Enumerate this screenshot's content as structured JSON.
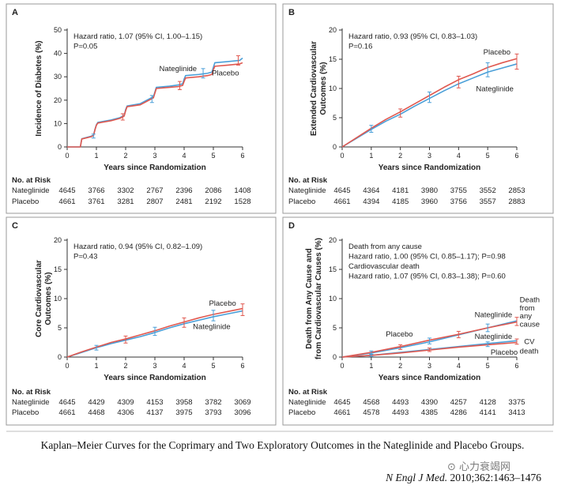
{
  "caption": "Kaplan–Meier Curves for the Coprimary and Two Exploratory Outcomes in the Nateglinide and Placebo Groups.",
  "citation": {
    "journal": "N Engl J Med.",
    "ref": " 2010;362:1463–1476"
  },
  "watermark": "⊙ 心力衰竭网",
  "colors": {
    "nateglinide": "#4a9fd8",
    "placebo": "#e0584f",
    "axis": "#333333",
    "border": "#9a9a9a"
  },
  "chart_data": [
    {
      "panel": "A",
      "type": "line",
      "ylabel": "Incidence of Diabetes (%)",
      "xlabel": "Years since Randomization",
      "ylim": [
        0,
        50
      ],
      "yticks": [
        0,
        10,
        20,
        30,
        40,
        50
      ],
      "xlim": [
        0,
        6
      ],
      "xticks": [
        0,
        1,
        2,
        3,
        4,
        5,
        6
      ],
      "stats": [
        "Hazard ratio, 1.07 (95% CI, 1.00–1.15)",
        "P=0.05"
      ],
      "labels": [
        {
          "text": "Nateglinide",
          "x": 3.15,
          "y": 32.5
        },
        {
          "text": "Placebo",
          "x": 4.95,
          "y": 30.5
        }
      ],
      "series": [
        {
          "name": "Nateglinide",
          "x": [
            0,
            0.45,
            0.5,
            0.8,
            0.9,
            0.95,
            1.0,
            1.05,
            1.5,
            1.8,
            1.95,
            2.0,
            2.05,
            2.5,
            2.8,
            2.95,
            3.0,
            3.05,
            3.5,
            3.8,
            3.95,
            4.0,
            4.05,
            4.5,
            4.8,
            4.95,
            5.0,
            5.05,
            5.5,
            5.9,
            6.0
          ],
          "y": [
            0,
            0,
            3.5,
            4.5,
            5.0,
            7.5,
            9.5,
            10.5,
            11.5,
            12.5,
            13.5,
            16,
            17.5,
            18.5,
            20.5,
            21.5,
            23.5,
            25.5,
            26,
            26.5,
            27,
            29,
            30.5,
            31,
            31.5,
            32,
            34,
            36,
            36.5,
            37,
            38
          ]
        },
        {
          "name": "Placebo",
          "x": [
            0,
            0.45,
            0.5,
            0.8,
            0.9,
            0.95,
            1.0,
            1.05,
            1.5,
            1.8,
            1.95,
            2.0,
            2.05,
            2.5,
            2.8,
            2.95,
            3.0,
            3.05,
            3.5,
            3.8,
            3.95,
            4.0,
            4.05,
            4.5,
            4.8,
            4.95,
            5.0,
            5.05,
            5.5,
            5.9,
            6.0
          ],
          "y": [
            0,
            0,
            3.4,
            4.3,
            4.8,
            7.3,
            9.3,
            10.2,
            11.2,
            12.2,
            13.2,
            15.5,
            17.2,
            18,
            20,
            21,
            23,
            25,
            25.5,
            25.8,
            26.3,
            28,
            29.5,
            30,
            30.5,
            31,
            33,
            34.5,
            35,
            35.5,
            36
          ]
        }
      ],
      "errorbars": [
        {
          "x": 0.9,
          "y": 4.6,
          "lo": 3.8,
          "hi": 5.5
        },
        {
          "x": 1.9,
          "y": 12.8,
          "lo": 11.5,
          "hi": 14.2
        },
        {
          "x": 2.9,
          "y": 20.5,
          "lo": 19,
          "hi": 22
        },
        {
          "x": 3.85,
          "y": 26.3,
          "lo": 24.5,
          "hi": 28
        },
        {
          "x": 4.65,
          "y": 31.5,
          "lo": 29.5,
          "hi": 33.5
        },
        {
          "x": 5.85,
          "y": 37,
          "lo": 35,
          "hi": 39
        }
      ],
      "risk": {
        "title": "No. at Risk",
        "rows": [
          {
            "label": "Nateglinide",
            "values": [
              "4645",
              "3766",
              "3302",
              "2767",
              "2396",
              "2086",
              "1408"
            ]
          },
          {
            "label": "Placebo",
            "values": [
              "4661",
              "3761",
              "3281",
              "2807",
              "2481",
              "2192",
              "1528"
            ]
          }
        ]
      }
    },
    {
      "panel": "B",
      "type": "line",
      "ylabel": "Extended Cardiovascular Outcomes (%)",
      "xlabel": "Years since Randomization",
      "ylim": [
        0,
        20
      ],
      "yticks": [
        0,
        5,
        10,
        15,
        20
      ],
      "xlim": [
        0,
        6
      ],
      "xticks": [
        0,
        1,
        2,
        3,
        4,
        5,
        6
      ],
      "stats": [
        "Hazard ratio, 0.93 (95% CI, 0.83–1.03)",
        "P=0.16"
      ],
      "labels": [
        {
          "text": "Placebo",
          "x": 4.85,
          "y": 15.8
        },
        {
          "text": "Nateglinide",
          "x": 4.6,
          "y": 9.5
        }
      ],
      "series": [
        {
          "name": "Nateglinide",
          "x": [
            0,
            0.5,
            1,
            1.5,
            2,
            2.5,
            3,
            3.5,
            4,
            4.5,
            5,
            5.5,
            6
          ],
          "y": [
            0,
            1.5,
            3.0,
            4.4,
            5.6,
            7.0,
            8.3,
            9.6,
            10.8,
            11.8,
            12.8,
            13.5,
            14.2
          ]
        },
        {
          "name": "Placebo",
          "x": [
            0,
            0.5,
            1,
            1.5,
            2,
            2.5,
            3,
            3.5,
            4,
            4.5,
            5,
            5.5,
            6
          ],
          "y": [
            0,
            1.6,
            3.2,
            4.7,
            6.0,
            7.4,
            8.8,
            10.2,
            11.5,
            12.5,
            13.6,
            14.4,
            15.1
          ]
        }
      ],
      "errorbars": [
        {
          "x": 1,
          "y": 3.1,
          "lo": 2.5,
          "hi": 3.7
        },
        {
          "x": 2,
          "y": 5.8,
          "lo": 5.1,
          "hi": 6.5
        },
        {
          "x": 3,
          "y": 8.5,
          "lo": 7.6,
          "hi": 9.4
        },
        {
          "x": 4,
          "y": 11.1,
          "lo": 10.1,
          "hi": 12.1
        },
        {
          "x": 5,
          "y": 13.2,
          "lo": 12,
          "hi": 14.4
        },
        {
          "x": 6,
          "y": 14.6,
          "lo": 13.3,
          "hi": 15.9
        }
      ],
      "risk": {
        "title": "No. at Risk",
        "rows": [
          {
            "label": "Nateglinide",
            "values": [
              "4645",
              "4364",
              "4181",
              "3980",
              "3755",
              "3552",
              "2853"
            ]
          },
          {
            "label": "Placebo",
            "values": [
              "4661",
              "4394",
              "4185",
              "3960",
              "3756",
              "3557",
              "2883"
            ]
          }
        ]
      }
    },
    {
      "panel": "C",
      "type": "line",
      "ylabel": "Core Cardiovascular Outcomes (%)",
      "xlabel": "Years since Randomization",
      "ylim": [
        0,
        20
      ],
      "yticks": [
        0,
        5,
        10,
        15,
        20
      ],
      "xlim": [
        0,
        6
      ],
      "xticks": [
        0,
        1,
        2,
        3,
        4,
        5,
        6
      ],
      "stats": [
        "Hazard ratio, 0.94 (95% CI, 0.82–1.09)",
        "P=0.43"
      ],
      "labels": [
        {
          "text": "Placebo",
          "x": 4.85,
          "y": 8.8
        },
        {
          "text": "Nateglinide",
          "x": 4.3,
          "y": 4.8
        }
      ],
      "series": [
        {
          "name": "Nateglinide",
          "x": [
            0,
            0.5,
            1,
            1.5,
            2,
            2.5,
            3,
            3.5,
            4,
            4.5,
            5,
            5.5,
            6
          ],
          "y": [
            0,
            0.8,
            1.6,
            2.3,
            2.9,
            3.5,
            4.2,
            5.0,
            5.7,
            6.3,
            6.9,
            7.4,
            7.9
          ]
        },
        {
          "name": "Placebo",
          "x": [
            0,
            0.5,
            1,
            1.5,
            2,
            2.5,
            3,
            3.5,
            4,
            4.5,
            5,
            5.5,
            6
          ],
          "y": [
            0,
            0.9,
            1.7,
            2.5,
            3.1,
            3.8,
            4.5,
            5.3,
            6.0,
            6.7,
            7.3,
            7.8,
            8.3
          ]
        }
      ],
      "errorbars": [
        {
          "x": 1,
          "y": 1.6,
          "lo": 1.2,
          "hi": 2.0
        },
        {
          "x": 2,
          "y": 3.0,
          "lo": 2.4,
          "hi": 3.6
        },
        {
          "x": 3,
          "y": 4.4,
          "lo": 3.7,
          "hi": 5.1
        },
        {
          "x": 4,
          "y": 5.9,
          "lo": 5.1,
          "hi": 6.7
        },
        {
          "x": 5,
          "y": 7.1,
          "lo": 6.2,
          "hi": 8.0
        },
        {
          "x": 6,
          "y": 8.1,
          "lo": 7.1,
          "hi": 9.1
        }
      ],
      "risk": {
        "title": "No. at Risk",
        "rows": [
          {
            "label": "Nateglinide",
            "values": [
              "4645",
              "4429",
              "4309",
              "4153",
              "3958",
              "3782",
              "3069"
            ]
          },
          {
            "label": "Placebo",
            "values": [
              "4661",
              "4468",
              "4306",
              "4137",
              "3975",
              "3793",
              "3096"
            ]
          }
        ]
      }
    },
    {
      "panel": "D",
      "type": "line",
      "ylabel": "Death from Any Cause and from Cardiovascular Causes (%)",
      "xlabel": "Years since Randomization",
      "ylim": [
        0,
        20
      ],
      "yticks": [
        0,
        5,
        10,
        15,
        20
      ],
      "xlim": [
        0,
        6
      ],
      "xticks": [
        0,
        1,
        2,
        3,
        4,
        5,
        6
      ],
      "stats": [
        "Death from any cause",
        "   Hazard ratio, 1.00 (95% CI, 0.85–1.17); P=0.98",
        "Cardiovascular death",
        "   Hazard ratio, 1.07 (95% CI, 0.83–1.38); P=0.60"
      ],
      "labels": [
        {
          "text": "Placebo",
          "x": 1.5,
          "y": 3.5
        },
        {
          "text": "Nateglinide",
          "x": 4.55,
          "y": 6.8
        },
        {
          "text": "Nateglinide",
          "x": 4.55,
          "y": 3.1
        },
        {
          "text": "Placebo",
          "x": 5.1,
          "y": 0.4
        },
        {
          "text": "Death",
          "x": 6.1,
          "y": 9.4
        },
        {
          "text": "from",
          "x": 6.1,
          "y": 8.0
        },
        {
          "text": "any",
          "x": 6.1,
          "y": 6.6
        },
        {
          "text": "cause",
          "x": 6.1,
          "y": 5.2
        },
        {
          "text": "CV",
          "x": 6.25,
          "y": 2.2
        },
        {
          "text": "death",
          "x": 6.1,
          "y": 0.6
        }
      ],
      "series": [
        {
          "name": "Nateglinide (any cause)",
          "x": [
            0,
            1,
            2,
            3,
            4,
            5,
            6
          ],
          "y": [
            0,
            0.7,
            1.6,
            2.6,
            3.8,
            5.0,
            6.2
          ]
        },
        {
          "name": "Placebo (any cause)",
          "x": [
            0,
            1,
            2,
            3,
            4,
            5,
            6
          ],
          "y": [
            0,
            0.8,
            1.8,
            2.9,
            3.9,
            5.0,
            6.0
          ]
        },
        {
          "name": "Nateglinide (CV death)",
          "x": [
            0,
            1,
            2,
            3,
            4,
            5,
            6
          ],
          "y": [
            0,
            0.3,
            0.8,
            1.3,
            1.8,
            2.3,
            2.8
          ]
        },
        {
          "name": "Placebo (CV death)",
          "x": [
            0,
            1,
            2,
            3,
            4,
            5,
            6
          ],
          "y": [
            0,
            0.3,
            0.7,
            1.2,
            1.7,
            2.1,
            2.5
          ]
        }
      ],
      "errorbars": [
        {
          "x": 1,
          "y": 0.75,
          "lo": 0.45,
          "hi": 1.05
        },
        {
          "x": 2,
          "y": 1.7,
          "lo": 1.3,
          "hi": 2.1
        },
        {
          "x": 3,
          "y": 2.75,
          "lo": 2.25,
          "hi": 3.25
        },
        {
          "x": 4,
          "y": 3.85,
          "lo": 3.3,
          "hi": 4.4
        },
        {
          "x": 5,
          "y": 5.0,
          "lo": 4.35,
          "hi": 5.65
        },
        {
          "x": 6,
          "y": 6.1,
          "lo": 5.4,
          "hi": 6.8
        },
        {
          "x": 1,
          "y": 0.3,
          "lo": 0.1,
          "hi": 0.5
        },
        {
          "x": 3,
          "y": 1.25,
          "lo": 0.95,
          "hi": 1.55
        },
        {
          "x": 5,
          "y": 2.2,
          "lo": 1.8,
          "hi": 2.6
        },
        {
          "x": 6,
          "y": 2.65,
          "lo": 2.2,
          "hi": 3.1
        }
      ],
      "risk": {
        "title": "No. at Risk",
        "rows": [
          {
            "label": "Nateglinide",
            "values": [
              "4645",
              "4568",
              "4493",
              "4390",
              "4257",
              "4128",
              "3375"
            ]
          },
          {
            "label": "Placebo",
            "values": [
              "4661",
              "4578",
              "4493",
              "4385",
              "4286",
              "4141",
              "3413"
            ]
          }
        ]
      }
    }
  ]
}
